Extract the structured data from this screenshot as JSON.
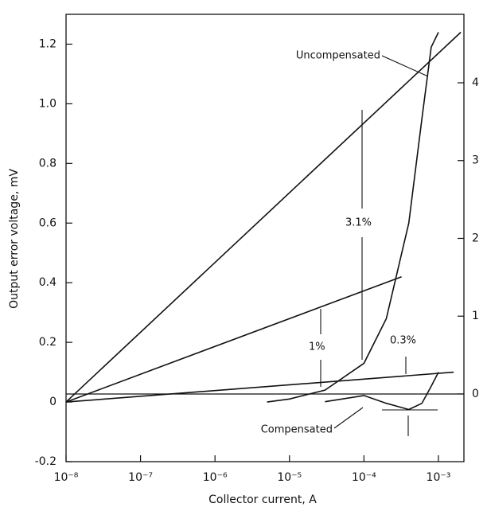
{
  "chart_data": {
    "type": "line",
    "xlabel": "Collector current, A",
    "ylabel": "Output error voltage, mV",
    "xscale": "log",
    "xlim": [
      1e-08,
      0.0022
    ],
    "ylim": [
      -0.2,
      1.3
    ],
    "y2lim": [
      -0.87,
      4.88
    ],
    "xticks": [
      {
        "value": 1e-08,
        "label": "10⁻⁸"
      },
      {
        "value": 1e-07,
        "label": "10⁻⁷"
      },
      {
        "value": 1e-06,
        "label": "10⁻⁶"
      },
      {
        "value": 1e-05,
        "label": "10⁻⁵"
      },
      {
        "value": 0.0001,
        "label": "10⁻⁴"
      },
      {
        "value": 0.001,
        "label": "10⁻³"
      }
    ],
    "yticks": [
      -0.2,
      0,
      0.2,
      0.4,
      0.6,
      0.8,
      {
        "value": 1,
        "label": "1.0"
      },
      1.2
    ],
    "y2ticks": [
      0,
      1,
      2,
      3,
      4
    ],
    "series": [
      {
        "name": "3.1%",
        "color": "#111111",
        "x": [
          1e-08,
          0.002
        ],
        "values": [
          0,
          1.24
        ]
      },
      {
        "name": "1%",
        "color": "#111111",
        "x": [
          1e-08,
          0.00032
        ],
        "values": [
          0,
          0.42
        ]
      },
      {
        "name": "0.3%",
        "color": "#111111",
        "x": [
          1e-08,
          0.0016
        ],
        "values": [
          0,
          0.1
        ]
      },
      {
        "name": "Uncompensated",
        "color": "#111111",
        "x": [
          5e-06,
          1e-05,
          3e-05,
          0.0001,
          0.0002,
          0.0004,
          0.0006,
          0.0008,
          0.001
        ],
        "values": [
          0,
          0.01,
          0.04,
          0.13,
          0.28,
          0.6,
          0.95,
          1.19,
          1.24
        ]
      },
      {
        "name": "Compensated",
        "color": "#111111",
        "axis": "y2",
        "x": [
          3e-05,
          0.0001,
          0.0002,
          0.0004,
          0.0006,
          0.0008,
          0.001
        ],
        "values": [
          -0.1,
          -0.02,
          -0.12,
          -0.2,
          -0.12,
          0.1,
          0.28
        ]
      }
    ]
  }
}
